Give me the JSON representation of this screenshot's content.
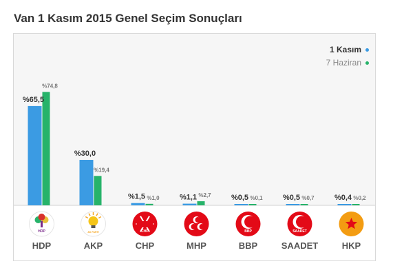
{
  "page": {
    "title": "Van 1 Kasım 2015 Genel Seçim Sonuçları"
  },
  "colors": {
    "kasim": "#3b9be3",
    "haziran": "#27b36a",
    "baseline": "#d0d0d0"
  },
  "legend": {
    "kasim": {
      "label": "1 Kasım",
      "color": "#3b9be3"
    },
    "haziran": {
      "label": "7 Haziran",
      "color": "#27b36a"
    }
  },
  "chart_data": {
    "type": "bar",
    "title": "Van 1 Kasım 2015 Genel Seçim Sonuçları",
    "categories": [
      "HDP",
      "AKP",
      "CHP",
      "MHP",
      "BBP",
      "SAADET",
      "HKP"
    ],
    "series": [
      {
        "name": "1 Kasım",
        "color": "#3b9be3",
        "values": [
          65.5,
          30.0,
          1.5,
          1.1,
          0.5,
          0.5,
          0.4
        ],
        "labels": [
          "%65,5",
          "%30,0",
          "%1,5",
          "%1,1",
          "%0,5",
          "%0,5",
          "%0,4"
        ]
      },
      {
        "name": "7 Haziran",
        "color": "#27b36a",
        "values": [
          74.8,
          19.4,
          1.0,
          2.7,
          0.1,
          0.7,
          0.2
        ],
        "labels": [
          "%74,8",
          "%19,4",
          "%1,0",
          "%2,7",
          "%0,1",
          "%0,7",
          "%0,2"
        ]
      }
    ],
    "ylim": [
      0,
      100
    ],
    "grid": false,
    "legend_position": "top-right",
    "logos": [
      {
        "party": "HDP",
        "icon": "hdp-tree-logo",
        "text": "HDP",
        "bg": "#ffffff",
        "fg": "#7a2a8a"
      },
      {
        "party": "AKP",
        "icon": "akp-lightbulb-logo",
        "text": "AK PARTİ",
        "bg": "#ffffff",
        "fg": "#f5a623"
      },
      {
        "party": "CHP",
        "icon": "chp-six-arrows-logo",
        "text": "CHP",
        "bg": "#e30a17",
        "fg": "#ffffff"
      },
      {
        "party": "MHP",
        "icon": "mhp-three-crescents-logo",
        "text": "",
        "bg": "#e30a17",
        "fg": "#ffffff"
      },
      {
        "party": "BBP",
        "icon": "bbp-crescent-logo",
        "text": "BBP",
        "bg": "#e30a17",
        "fg": "#ffffff"
      },
      {
        "party": "SAADET",
        "icon": "saadet-crescent-logo",
        "text": "SAADET",
        "bg": "#e30a17",
        "fg": "#ffffff"
      },
      {
        "party": "HKP",
        "icon": "hkp-star-logo",
        "text": "",
        "bg": "#f39c12",
        "fg": "#e30a17"
      }
    ]
  }
}
